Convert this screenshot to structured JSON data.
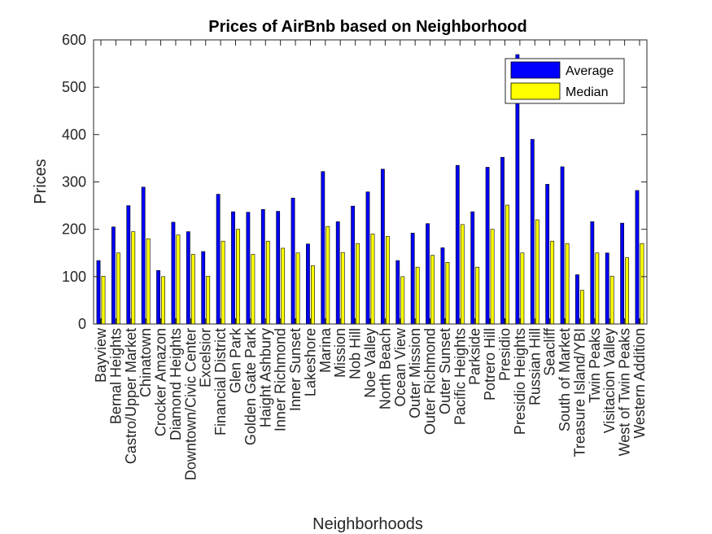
{
  "chart_data": {
    "type": "bar",
    "title": "Prices of AirBnb based on Neighborhood",
    "xlabel": "Neighborhoods",
    "ylabel": "Prices",
    "ylim": [
      0,
      600
    ],
    "yticks": [
      0,
      100,
      200,
      300,
      400,
      500,
      600
    ],
    "grid": false,
    "legend_position": "top-right",
    "categories": [
      "Bayview",
      "Bernal Heights",
      "Castro/Upper Market",
      "Chinatown",
      "Crocker Amazon",
      "Diamond Heights",
      "Downtown/Civic Center",
      "Excelsior",
      "Financial District",
      "Glen Park",
      "Golden Gate Park",
      "Haight Ashbury",
      "Inner Richmond",
      "Inner Sunset",
      "Lakeshore",
      "Marina",
      "Mission",
      "Nob Hill",
      "Noe Valley",
      "North Beach",
      "Ocean View",
      "Outer Mission",
      "Outer Richmond",
      "Outer Sunset",
      "Pacific Heights",
      "Parkside",
      "Potrero Hill",
      "Presidio",
      "Presidio Heights",
      "Russian Hill",
      "Seacliff",
      "South of Market",
      "Treasure Island/YBI",
      "Twin Peaks",
      "Visitacion Valley",
      "West of Twin Peaks",
      "Western Addition"
    ],
    "series": [
      {
        "name": "Average",
        "color": "#0000ff",
        "values": [
          134,
          205,
          250,
          289,
          113,
          215,
          195,
          153,
          274,
          237,
          236,
          242,
          238,
          266,
          169,
          322,
          216,
          249,
          279,
          327,
          134,
          192,
          212,
          161,
          335,
          237,
          331,
          352,
          569,
          390,
          295,
          332,
          104,
          216,
          150,
          213,
          282
        ]
      },
      {
        "name": "Median",
        "color": "#ffff00",
        "values": [
          101,
          150,
          195,
          180,
          100,
          188,
          147,
          101,
          175,
          200,
          147,
          175,
          160,
          150,
          123,
          206,
          151,
          170,
          190,
          185,
          100,
          120,
          145,
          130,
          210,
          120,
          200,
          251,
          150,
          220,
          175,
          170,
          71,
          150,
          101,
          140,
          170
        ]
      }
    ]
  }
}
